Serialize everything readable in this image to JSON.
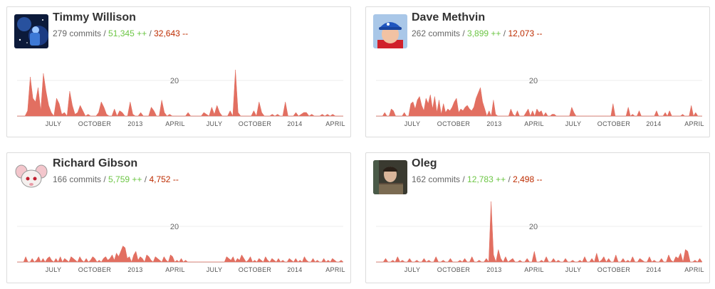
{
  "contributors": [
    {
      "name": "Timmy Willison",
      "commits": "279 commits",
      "additions": "51,345 ++",
      "deletions": "32,643 --",
      "avatar_icon": "avatar-space-illustration-icon",
      "values": [
        0,
        0,
        0,
        0,
        3,
        22,
        10,
        8,
        16,
        3,
        24,
        14,
        6,
        2,
        0,
        10,
        7,
        1,
        2,
        0,
        14,
        6,
        1,
        2,
        6,
        3,
        0,
        1,
        0,
        0,
        0,
        2,
        8,
        5,
        1,
        0,
        0,
        4,
        0,
        3,
        2,
        0,
        0,
        8,
        1,
        0,
        0,
        2,
        0,
        0,
        0,
        5,
        3,
        0,
        0,
        9,
        2,
        0,
        1,
        0,
        0,
        0,
        0,
        0,
        0,
        2,
        0,
        0,
        0,
        0,
        0,
        2,
        1,
        0,
        5,
        1,
        6,
        2,
        0,
        0,
        0,
        3,
        0,
        26,
        2,
        0,
        0,
        0,
        0,
        0,
        3,
        0,
        8,
        2,
        0,
        0,
        0,
        1,
        0,
        1,
        0,
        0,
        8,
        0,
        0,
        0,
        2,
        0,
        1,
        2,
        2,
        0,
        1,
        0,
        0,
        0,
        1,
        0,
        1,
        0,
        1,
        0,
        0,
        0,
        0
      ]
    },
    {
      "name": "Dave Methvin",
      "commits": "262 commits",
      "additions": "3,899 ++",
      "deletions": "12,073 --",
      "avatar_icon": "avatar-blue-cap-icon",
      "values": [
        0,
        0,
        0,
        0,
        2,
        0,
        0,
        4,
        3,
        0,
        0,
        0,
        0,
        2,
        0,
        0,
        7,
        8,
        4,
        9,
        11,
        6,
        3,
        10,
        7,
        12,
        4,
        11,
        2,
        9,
        1,
        7,
        2,
        4,
        3,
        5,
        8,
        10,
        2,
        4,
        3,
        5,
        6,
        4,
        3,
        5,
        10,
        13,
        16,
        8,
        4,
        0,
        3,
        0,
        9,
        1,
        0,
        0,
        0,
        0,
        0,
        0,
        4,
        1,
        0,
        3,
        0,
        0,
        0,
        2,
        4,
        0,
        3,
        0,
        4,
        2,
        3,
        0,
        2,
        0,
        0,
        1,
        1,
        0,
        0,
        0,
        0,
        0,
        0,
        0,
        5,
        2,
        0,
        0,
        0,
        0,
        0,
        0,
        0,
        0,
        0,
        0,
        0,
        0,
        0,
        0,
        0,
        0,
        0,
        7,
        0,
        0,
        0,
        0,
        0,
        0,
        5,
        0,
        1,
        0,
        0,
        3,
        0,
        0,
        0,
        0,
        0,
        0,
        0,
        3,
        0,
        0,
        0,
        2,
        0,
        3,
        0,
        0,
        0,
        0,
        0,
        1,
        0,
        0,
        0,
        6,
        0,
        2,
        0,
        0,
        0
      ]
    },
    {
      "name": "Richard Gibson",
      "commits": "166 commits",
      "additions": "5,759 ++",
      "deletions": "4,752 --",
      "avatar_icon": "avatar-cartoon-mouse-icon",
      "values": [
        0,
        0,
        0,
        0,
        3,
        0,
        0,
        2,
        0,
        1,
        3,
        0,
        2,
        0,
        2,
        3,
        1,
        0,
        2,
        0,
        3,
        0,
        2,
        1,
        0,
        3,
        2,
        1,
        0,
        3,
        1,
        0,
        2,
        0,
        1,
        3,
        2,
        0,
        1,
        0,
        2,
        3,
        1,
        2,
        4,
        1,
        5,
        3,
        6,
        9,
        8,
        2,
        3,
        0,
        4,
        6,
        1,
        3,
        2,
        0,
        4,
        3,
        1,
        0,
        3,
        2,
        1,
        0,
        3,
        1,
        0,
        4,
        3,
        0,
        1,
        0,
        2,
        0,
        1,
        0,
        0,
        0,
        0,
        0,
        0,
        0,
        0,
        0,
        0,
        0,
        0,
        0,
        0,
        0,
        0,
        0,
        0,
        3,
        2,
        1,
        3,
        0,
        2,
        1,
        4,
        2,
        0,
        1,
        3,
        0,
        1,
        0,
        2,
        1,
        0,
        3,
        1,
        0,
        2,
        1,
        0,
        2,
        0,
        1,
        0,
        0,
        2,
        1,
        0,
        2,
        0,
        1,
        0,
        3,
        1,
        0,
        0,
        2,
        0,
        1,
        0,
        0,
        2,
        0,
        1,
        0,
        2,
        1,
        0,
        0,
        1,
        0
      ]
    },
    {
      "name": "Oleg",
      "commits": "162 commits",
      "additions": "12,783 ++",
      "deletions": "2,498 --",
      "avatar_icon": "avatar-man-photo-icon",
      "values": [
        0,
        0,
        0,
        0,
        2,
        0,
        0,
        1,
        0,
        3,
        0,
        1,
        0,
        0,
        2,
        0,
        0,
        1,
        0,
        0,
        2,
        0,
        1,
        0,
        0,
        3,
        0,
        0,
        1,
        0,
        0,
        2,
        0,
        0,
        0,
        1,
        0,
        2,
        0,
        0,
        3,
        0,
        0,
        1,
        0,
        0,
        2,
        0,
        34,
        4,
        0,
        7,
        2,
        0,
        3,
        0,
        1,
        2,
        0,
        0,
        1,
        0,
        0,
        2,
        0,
        0,
        6,
        0,
        0,
        1,
        0,
        3,
        0,
        0,
        2,
        0,
        1,
        0,
        0,
        2,
        0,
        0,
        1,
        0,
        0,
        1,
        0,
        3,
        0,
        0,
        2,
        0,
        5,
        0,
        1,
        3,
        0,
        2,
        0,
        0,
        4,
        0,
        0,
        2,
        0,
        1,
        0,
        3,
        0,
        0,
        2,
        1,
        0,
        0,
        3,
        0,
        1,
        0,
        0,
        2,
        0,
        0,
        4,
        1,
        0,
        3,
        2,
        5,
        0,
        7,
        6,
        0,
        0,
        1,
        0,
        2,
        0
      ]
    }
  ],
  "axis": {
    "months": [
      "JULY",
      "OCTOBER",
      "2013",
      "APRIL",
      "JULY",
      "OCTOBER",
      "2014",
      "APRIL"
    ],
    "y_tick": "20",
    "y_tick_value": 20,
    "y_max": 34
  },
  "colors": {
    "area": "#e26f61",
    "additions": "#6cc644",
    "deletions": "#bd2c00"
  }
}
